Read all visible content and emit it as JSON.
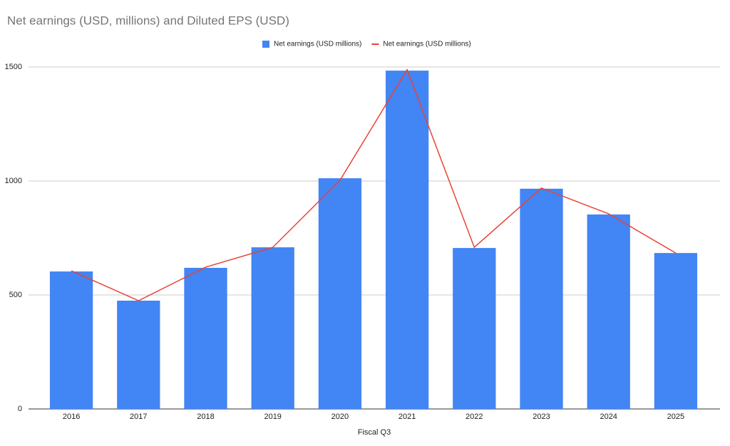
{
  "chart_data": {
    "type": "combo",
    "title": "Net earnings (USD, millions) and Diluted EPS (USD)",
    "x_label": "Fiscal Q3",
    "categories": [
      "2016",
      "2017",
      "2018",
      "2019",
      "2020",
      "2021",
      "2022",
      "2023",
      "2024",
      "2025"
    ],
    "series": [
      {
        "name": "Net earnings (USD millions)",
        "type": "bar",
        "color": "#4285f4",
        "values": [
          603,
          475,
          619,
          709,
          1012,
          1484,
          706,
          966,
          853,
          684
        ]
      },
      {
        "name": "Net earnings (USD millions)",
        "type": "line",
        "color": "#ea4335",
        "values": [
          606,
          475,
          622,
          709,
          1003,
          1488,
          709,
          969,
          856,
          684
        ]
      }
    ],
    "ylim": [
      0,
      1500
    ],
    "yticks": [
      0,
      500,
      1000,
      1500
    ],
    "grid": true,
    "legend": "top"
  }
}
